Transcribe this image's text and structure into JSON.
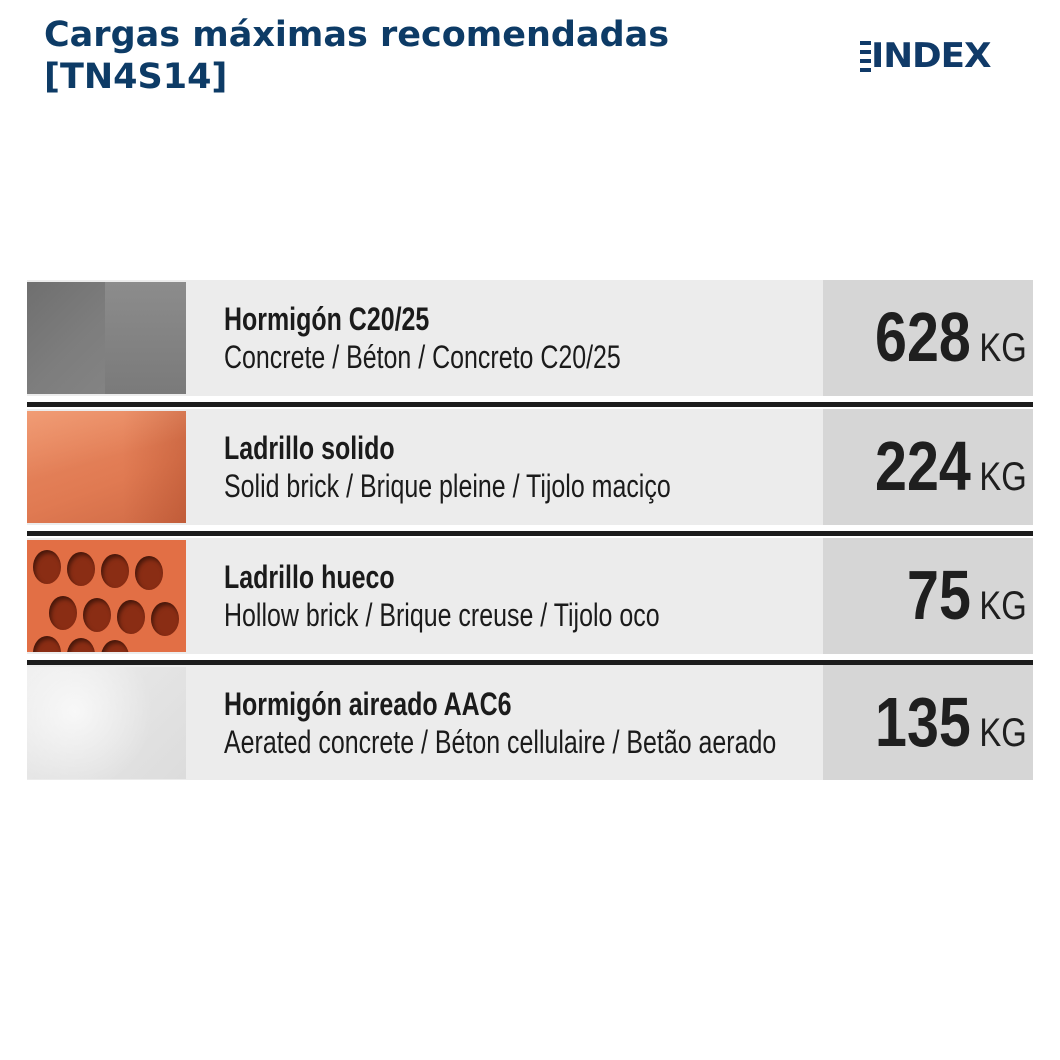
{
  "header": {
    "title_line1": "Cargas máximas recomendadas",
    "title_line2": "[TN4S14]",
    "logo_text": "INDEX"
  },
  "materials": [
    {
      "swatch_icon": "concrete-block-icon",
      "name": "Hormigón  C20/25",
      "translation": "Concrete / Béton / Concreto C20/25",
      "value": "628",
      "unit": "KG"
    },
    {
      "swatch_icon": "solid-brick-icon",
      "name": "Ladrillo solido",
      "translation": "Solid brick / Brique pleine / Tijolo maciço",
      "value": "224",
      "unit": "KG"
    },
    {
      "swatch_icon": "hollow-brick-icon",
      "name": "Ladrillo hueco",
      "translation": "Hollow brick / Brique creuse / Tijolo oco",
      "value": "75",
      "unit": "KG"
    },
    {
      "swatch_icon": "aerated-concrete-icon",
      "name": "Hormigón aireado AAC6",
      "translation": "Aerated concrete / Béton cellulaire / Betão aerado",
      "value": "135",
      "unit": "KG"
    }
  ],
  "colors": {
    "title": "#0d3b66",
    "logo": "#103a68",
    "row_background": "#ececec",
    "value_cell_background": "#d6d6d6",
    "divider": "#1c1c1c"
  }
}
